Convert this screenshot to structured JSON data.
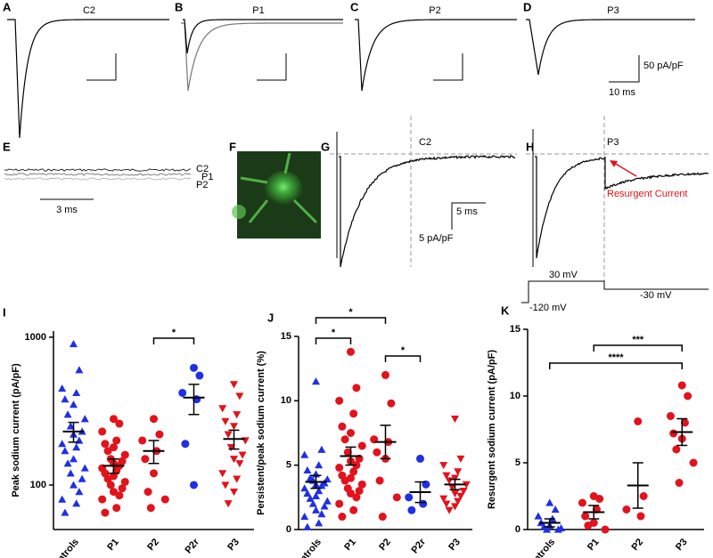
{
  "panels": {
    "A": {
      "letter": "A",
      "label": "C2"
    },
    "B": {
      "letter": "B",
      "label": "P1"
    },
    "C": {
      "letter": "C",
      "label": "P2"
    },
    "D": {
      "letter": "D",
      "label": "P3",
      "scale_y": "50 pA/pF",
      "scale_x": "10 ms"
    },
    "E": {
      "letter": "E",
      "labels": [
        "C2",
        "P1",
        "P2"
      ],
      "scale_x": "3 ms"
    },
    "F": {
      "letter": "F"
    },
    "G": {
      "letter": "G",
      "label": "C2",
      "scale_x": "5 ms",
      "scale_y": "5 pA/pF"
    },
    "H": {
      "letter": "H",
      "label": "P3",
      "annotation": "Resurgent Current",
      "protocol": [
        "30 mV",
        "-120 mV",
        "-30 mV"
      ]
    }
  },
  "chart_data": [
    {
      "type": "dot",
      "panel": "I",
      "y_label": "Peak sodium current  (pA/pF)",
      "log_y": true,
      "categories": [
        "Controls",
        "P1",
        "P2",
        "P2r",
        "P3"
      ],
      "colors": [
        "#1f2fe6",
        "#e3121b",
        "#e3121b",
        "#1f2fe6",
        "#e3121b"
      ],
      "markers": [
        "triangle",
        "circle",
        "circle",
        "circle",
        "triangle-down"
      ],
      "values": [
        [
          900,
          600,
          450,
          420,
          380,
          350,
          300,
          280,
          250,
          230,
          220,
          200,
          190,
          180,
          170,
          150,
          140,
          130,
          120,
          110,
          100,
          90,
          80,
          75,
          65
        ],
        [
          280,
          260,
          230,
          200,
          190,
          180,
          170,
          160,
          150,
          145,
          140,
          135,
          130,
          125,
          120,
          115,
          110,
          105,
          100,
          95,
          90,
          85,
          80,
          70,
          65
        ],
        [
          280,
          220,
          200,
          170,
          150,
          120,
          90,
          80,
          70
        ],
        [
          620,
          550,
          420,
          380,
          190,
          100
        ],
        [
          480,
          400,
          330,
          300,
          270,
          250,
          220,
          200,
          180,
          160,
          150,
          140,
          120,
          110,
          100,
          90,
          75
        ]
      ],
      "means": [
        230,
        135,
        170,
        390,
        205
      ],
      "sems": [
        35,
        15,
        30,
        90,
        30
      ],
      "ylim": [
        50,
        1100
      ],
      "yticks": [
        100,
        1000
      ],
      "significance": [
        {
          "pair": [
            "P2",
            "P2r"
          ],
          "label": "*"
        }
      ]
    },
    {
      "type": "dot",
      "panel": "J",
      "y_label": "Persistent/peak sodium current (%)",
      "log_y": false,
      "categories": [
        "Controls",
        "P1",
        "P2",
        "P2r",
        "P3"
      ],
      "colors": [
        "#1f2fe6",
        "#e3121b",
        "#e3121b",
        "#1f2fe6",
        "#e3121b"
      ],
      "markers": [
        "triangle",
        "circle",
        "circle",
        "circle",
        "triangle-down"
      ],
      "values": [
        [
          11.5,
          6.2,
          5.8,
          5,
          4.6,
          4.3,
          4,
          3.9,
          3.8,
          3.6,
          3.5,
          3.4,
          3.2,
          3,
          2.8,
          2.6,
          2.4,
          2.2,
          2,
          1.8,
          1.5,
          1.2,
          1,
          0.5,
          0.2
        ],
        [
          13.8,
          11,
          10,
          9,
          8,
          7.5,
          7,
          6.5,
          6,
          5.5,
          5.3,
          5,
          4.8,
          4.5,
          4.2,
          4,
          3.8,
          3.5,
          3.2,
          3,
          2.8,
          2.5,
          2,
          1.5,
          1
        ],
        [
          12,
          9.8,
          7,
          6.8,
          6,
          5.5,
          3.8,
          2.5,
          1
        ],
        [
          5.5,
          3.5,
          2.5,
          2,
          1.5
        ],
        [
          8.6,
          5.5,
          5,
          4.5,
          4.2,
          4,
          3.8,
          3.5,
          3.3,
          3,
          2.8,
          2.6,
          2.4,
          2.2,
          2,
          1.8,
          1.5
        ]
      ],
      "means": [
        3.7,
        5.7,
        6.8,
        2.9,
        3.5
      ],
      "sems": [
        0.5,
        0.7,
        1.3,
        0.8,
        0.4
      ],
      "ylim": [
        0,
        15
      ],
      "yticks": [
        0,
        5,
        10,
        15
      ],
      "significance": [
        {
          "pair": [
            "Controls",
            "P1"
          ],
          "label": "*"
        },
        {
          "pair": [
            "Controls",
            "P2"
          ],
          "label": "*"
        },
        {
          "pair": [
            "P2",
            "P2r"
          ],
          "label": "*"
        }
      ]
    },
    {
      "type": "dot",
      "panel": "K",
      "y_label": "Resurgent sodium current (pA/pF)",
      "log_y": false,
      "categories": [
        "Controls",
        "P1",
        "P2",
        "P3"
      ],
      "colors": [
        "#1f2fe6",
        "#e3121b",
        "#e3121b",
        "#e3121b"
      ],
      "markers": [
        "triangle",
        "circle",
        "circle",
        "circle"
      ],
      "values": [
        [
          2,
          1.5,
          1,
          0.8,
          0.5,
          0.3,
          0.2,
          0.1,
          0,
          0
        ],
        [
          2.5,
          2.3,
          2,
          1.5,
          1,
          0.5,
          0.3,
          0
        ],
        [
          8.1,
          2.5,
          1.5,
          1
        ],
        [
          10.8,
          10,
          8.5,
          8,
          7.2,
          6.8,
          6,
          5,
          3.5
        ]
      ],
      "means": [
        0.5,
        1.3,
        3.3,
        7.3
      ],
      "sems": [
        0.3,
        0.5,
        1.7,
        1
      ],
      "ylim": [
        0,
        15
      ],
      "yticks": [
        0,
        5,
        10,
        15
      ],
      "significance": [
        {
          "pair": [
            "P1",
            "P3"
          ],
          "label": "***"
        },
        {
          "pair": [
            "Controls",
            "P3"
          ],
          "label": "****"
        }
      ]
    }
  ]
}
